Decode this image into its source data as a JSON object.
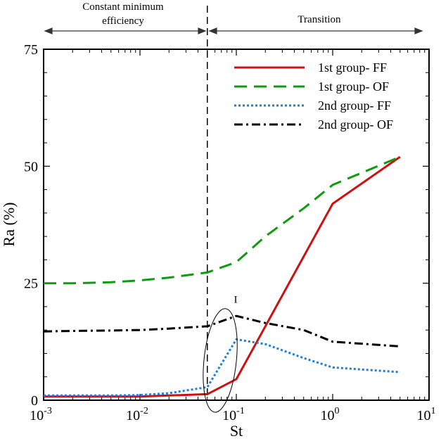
{
  "chart_data": {
    "type": "line",
    "xscale": "log",
    "xlabel": "St",
    "ylabel": "Ra (%)",
    "xlim": [
      0.001,
      10
    ],
    "ylim": [
      0,
      75
    ],
    "yticks": [
      0,
      25,
      50,
      75
    ],
    "xticks": [
      {
        "value": 0.001,
        "base": "10",
        "exp": "-3"
      },
      {
        "value": 0.01,
        "base": "10",
        "exp": "-2"
      },
      {
        "value": 0.1,
        "base": "10",
        "exp": "-1"
      },
      {
        "value": 1,
        "base": "10",
        "exp": "0"
      },
      {
        "value": 10,
        "base": "10",
        "exp": "1"
      }
    ],
    "grid": false,
    "legend_position": "top-right",
    "series": [
      {
        "name": "1st group- FF",
        "color": "#cc1111",
        "dash": "solid",
        "x": [
          0.001,
          0.002,
          0.005,
          0.01,
          0.02,
          0.05,
          0.1,
          1,
          5
        ],
        "y": [
          0.8,
          0.8,
          0.8,
          0.8,
          1.0,
          1.3,
          4.5,
          42,
          52
        ]
      },
      {
        "name": "1st group- OF",
        "color": "#119911",
        "dash": "dashed",
        "x": [
          0.001,
          0.002,
          0.005,
          0.01,
          0.02,
          0.05,
          0.1,
          0.2,
          0.5,
          1,
          5
        ],
        "y": [
          25,
          25,
          25.2,
          25.6,
          26.2,
          27.3,
          29.5,
          35,
          41,
          46,
          52
        ]
      },
      {
        "name": "2nd group- FF",
        "color": "#1a7fe0",
        "dash": "dotted",
        "x": [
          0.001,
          0.005,
          0.01,
          0.02,
          0.05,
          0.1,
          0.2,
          0.5,
          1,
          5
        ],
        "y": [
          1.0,
          1.0,
          1.1,
          1.5,
          2.8,
          13,
          12,
          9,
          7,
          6
        ]
      },
      {
        "name": "2nd group- OF",
        "color": "#000000",
        "dash": "dashdot",
        "x": [
          0.001,
          0.002,
          0.005,
          0.01,
          0.02,
          0.05,
          0.1,
          0.2,
          0.5,
          1,
          5
        ],
        "y": [
          14.7,
          14.8,
          14.9,
          15.0,
          15.3,
          15.8,
          18,
          16.5,
          15,
          12.5,
          11.5
        ]
      }
    ],
    "vline": {
      "x": 0.05
    },
    "regions": {
      "left_label": [
        "Constant minimum",
        "efficiency"
      ],
      "right_label": "Transition"
    },
    "annotation": {
      "label": "I",
      "center_x": 0.068,
      "center_y": 8.5
    }
  }
}
